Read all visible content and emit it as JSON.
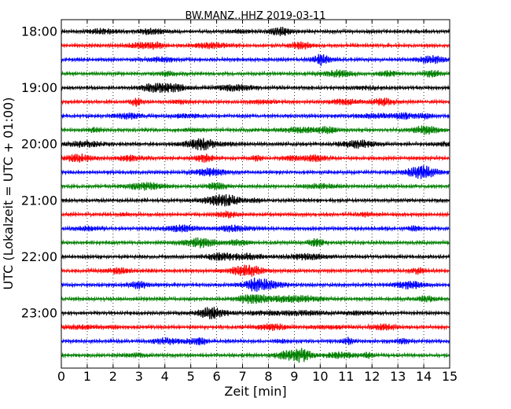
{
  "chart_data": {
    "type": "line",
    "title": "BW.MANZ..HHZ 2019-03-11",
    "xlabel": "Zeit  [min]",
    "ylabel": "UTC (Lokalzeit = UTC + 01:00)",
    "xlim": [
      0,
      15
    ],
    "x_ticks": [
      "0",
      "1",
      "2",
      "3",
      "4",
      "5",
      "6",
      "7",
      "8",
      "9",
      "10",
      "11",
      "12",
      "13",
      "14",
      "15"
    ],
    "y_tick_labels": [
      "18:00",
      "19:00",
      "20:00",
      "21:00",
      "22:00",
      "23:00"
    ],
    "grid": "vertical dotted",
    "trace_colors": [
      "#000000",
      "#ff0000",
      "#0000ff",
      "#008000"
    ],
    "traces": [
      {
        "start": "18:00"
      },
      {
        "start": "18:15"
      },
      {
        "start": "18:30"
      },
      {
        "start": "18:45"
      },
      {
        "start": "19:00"
      },
      {
        "start": "19:15"
      },
      {
        "start": "19:30"
      },
      {
        "start": "19:45"
      },
      {
        "start": "20:00"
      },
      {
        "start": "20:15"
      },
      {
        "start": "20:30"
      },
      {
        "start": "20:45"
      },
      {
        "start": "21:00"
      },
      {
        "start": "21:15"
      },
      {
        "start": "21:30"
      },
      {
        "start": "21:45"
      },
      {
        "start": "22:00"
      },
      {
        "start": "22:15"
      },
      {
        "start": "22:30"
      },
      {
        "start": "22:45"
      },
      {
        "start": "23:00"
      },
      {
        "start": "23:15"
      },
      {
        "start": "23:30"
      },
      {
        "start": "23:45"
      }
    ]
  }
}
